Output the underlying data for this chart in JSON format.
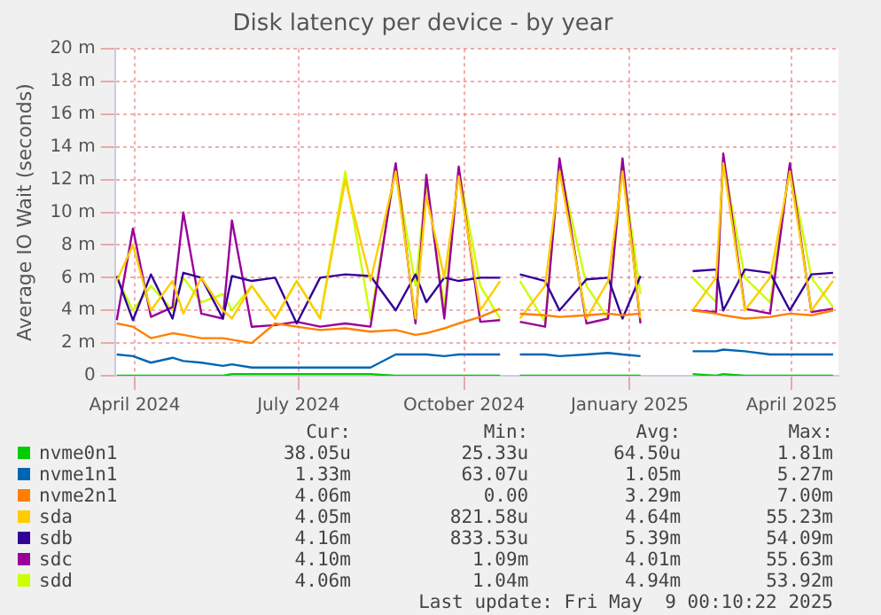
{
  "chart_data": {
    "type": "line",
    "title": "Disk latency per device - by year",
    "ylabel": "Average IO Wait (seconds)",
    "x": [
      "2024-03-22",
      "2024-03-31",
      "2024-04-10",
      "2024-04-22",
      "2024-04-28",
      "2024-05-08",
      "2024-05-20",
      "2024-05-25",
      "2024-06-05",
      "2024-06-18",
      "2024-06-30",
      "2024-07-13",
      "2024-07-27",
      "2024-08-10",
      "2024-08-24",
      "2024-09-04",
      "2024-09-10",
      "2024-09-20",
      "2024-09-28",
      "2024-10-10",
      "2024-10-21",
      "2024-10-27",
      "2024-11-01",
      "2024-11-15",
      "2024-11-23",
      "2024-12-08",
      "2024-12-20",
      "2024-12-28",
      "2025-01-07",
      "2025-01-20",
      "2025-02-05",
      "2025-02-18",
      "2025-02-22",
      "2025-03-06",
      "2025-03-20",
      "2025-03-31",
      "2025-04-12",
      "2025-04-24"
    ],
    "series": [
      {
        "name": "nvme0n1",
        "color": "#00cc00",
        "values": [
          0,
          0,
          0,
          0,
          0,
          0,
          0,
          0.1,
          0.1,
          0.1,
          0.1,
          0.1,
          0.1,
          0.1,
          0,
          0,
          0,
          0,
          0,
          0,
          0,
          null,
          0,
          0,
          0,
          0,
          0,
          0,
          0,
          null,
          0.1,
          0,
          0.1,
          0,
          0,
          0,
          0,
          0
        ]
      },
      {
        "name": "nvme1n1",
        "color": "#0066b3",
        "values": [
          1.3,
          1.2,
          0.8,
          1.1,
          0.9,
          0.8,
          0.6,
          0.7,
          0.5,
          0.5,
          0.5,
          0.5,
          0.5,
          0.5,
          1.3,
          1.3,
          1.3,
          1.2,
          1.3,
          1.3,
          1.3,
          null,
          1.3,
          1.3,
          1.2,
          1.3,
          1.4,
          1.3,
          1.2,
          null,
          1.5,
          1.5,
          1.6,
          1.5,
          1.3,
          1.3,
          1.3,
          1.3
        ]
      },
      {
        "name": "nvme2n1",
        "color": "#ff8000",
        "values": [
          3.2,
          3.0,
          2.3,
          2.6,
          2.5,
          2.3,
          2.3,
          2.2,
          2.0,
          3.2,
          3.0,
          2.8,
          2.9,
          2.7,
          2.8,
          2.5,
          2.6,
          2.9,
          3.2,
          3.6,
          4.1,
          null,
          3.8,
          3.7,
          3.6,
          3.7,
          3.8,
          3.7,
          3.8,
          null,
          4.0,
          3.8,
          3.7,
          3.5,
          3.6,
          3.8,
          3.7,
          4.0
        ]
      },
      {
        "name": "sda",
        "color": "#ffcc00",
        "values": [
          5.8,
          8.0,
          4.0,
          5.8,
          3.8,
          6.0,
          4.0,
          3.5,
          5.5,
          3.5,
          5.8,
          3.5,
          12.0,
          5.8,
          12.5,
          3.5,
          11.0,
          6.0,
          12.2,
          4.0,
          5.8,
          null,
          3.5,
          5.5,
          12.5,
          3.5,
          5.8,
          12.5,
          3.5,
          null,
          4.0,
          6.0,
          13.0,
          4.0,
          6.0,
          12.5,
          4.0,
          5.8
        ]
      },
      {
        "name": "sdb",
        "color": "#330099",
        "values": [
          6.1,
          3.4,
          6.2,
          3.5,
          6.3,
          6.0,
          3.5,
          6.1,
          5.8,
          6.0,
          3.2,
          6.0,
          6.2,
          6.1,
          4.0,
          6.2,
          4.5,
          6.0,
          5.8,
          6.0,
          6.0,
          null,
          6.2,
          5.8,
          4.0,
          5.9,
          6.0,
          3.5,
          6.1,
          null,
          6.4,
          6.5,
          4.0,
          6.5,
          6.3,
          4.0,
          6.2,
          6.3
        ]
      },
      {
        "name": "sdc",
        "color": "#990099",
        "values": [
          3.4,
          9.0,
          3.6,
          4.2,
          10.0,
          3.8,
          3.5,
          9.5,
          3.0,
          3.1,
          3.3,
          3.0,
          3.2,
          3.0,
          13.0,
          3.2,
          12.3,
          3.5,
          12.8,
          3.3,
          3.4,
          null,
          3.3,
          3.0,
          13.3,
          3.2,
          3.5,
          13.3,
          3.2,
          null,
          4.0,
          3.9,
          13.6,
          4.1,
          3.8,
          13.0,
          3.9,
          4.1
        ]
      },
      {
        "name": "sdd",
        "color": "#ccff00",
        "values": [
          6.0,
          4.0,
          5.5,
          4.0,
          6.0,
          4.5,
          5.0,
          4.0,
          5.5,
          3.5,
          5.8,
          3.5,
          12.5,
          3.5,
          12.7,
          5.5,
          11.8,
          4.2,
          12.6,
          5.5,
          3.5,
          null,
          5.8,
          3.3,
          12.9,
          5.5,
          3.5,
          12.9,
          5.0,
          null,
          6.0,
          4.5,
          13.2,
          6.0,
          4.5,
          12.8,
          6.0,
          4.2
        ]
      }
    ],
    "xlim": [
      "2024-03-21",
      "2025-04-27"
    ],
    "xticks": [
      {
        "value": "2024-04-01",
        "label": "April 2024"
      },
      {
        "value": "2024-07-01",
        "label": "July 2024"
      },
      {
        "value": "2024-10-01",
        "label": "October 2024"
      },
      {
        "value": "2025-01-01",
        "label": "January 2025"
      },
      {
        "value": "2025-04-01",
        "label": "April 2025"
      }
    ],
    "ylim": [
      0,
      20
    ],
    "yticks": [
      0,
      {
        "value": 2,
        "label": "2 m"
      },
      {
        "value": 4,
        "label": "4 m"
      },
      {
        "value": 6,
        "label": "6 m"
      },
      {
        "value": 8,
        "label": "8 m"
      },
      {
        "value": 10,
        "label": "10 m"
      },
      {
        "value": 12,
        "label": "12 m"
      },
      {
        "value": 14,
        "label": "14 m"
      },
      {
        "value": 16,
        "label": "16 m"
      },
      {
        "value": 18,
        "label": "18 m"
      },
      {
        "value": 20,
        "label": "20 m"
      }
    ],
    "grid": true,
    "legend": "bottom",
    "marker": "none",
    "line_style": "solid",
    "annotations": [
      "Cur:",
      "Min:",
      "Avg:",
      "Max:",
      "38.05u",
      "25.33u",
      "64.50u",
      "1.81m",
      "1.33m",
      "63.07u",
      "1.05m",
      "5.27m",
      "4.06m",
      "0.00",
      "3.29m",
      "7.00m",
      "4.05m",
      "821.58u",
      "4.64m",
      "55.23m",
      "4.16m",
      "833.53u",
      "5.39m",
      "54.09m",
      "4.10m",
      "1.09m",
      "4.01m",
      "55.63m",
      "4.06m",
      "1.04m",
      "4.94m",
      "53.92m",
      "Last update: Fri May  9 00:10:22 2025"
    ]
  }
}
